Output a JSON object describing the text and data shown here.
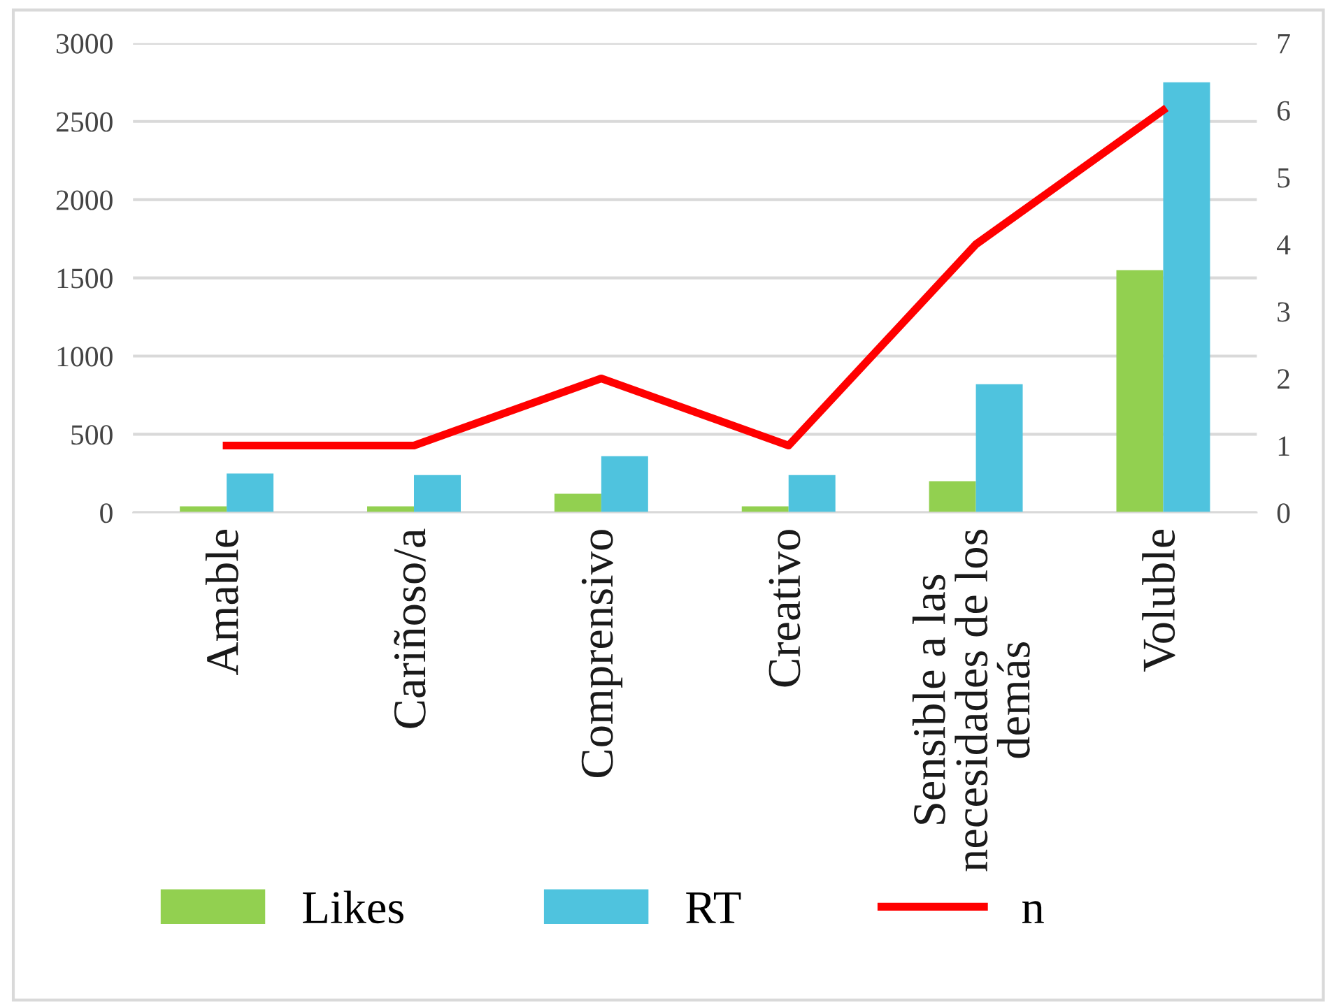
{
  "chart_data": {
    "type": "bar",
    "categories": [
      "Amable",
      "Cariñoso/a",
      "Comprensivo",
      "Creativo",
      "Sensible a las\nnecesidades de los\ndemás",
      "Voluble"
    ],
    "series": [
      {
        "name": "Likes",
        "color": "#92d050",
        "values": [
          40,
          40,
          120,
          40,
          200,
          1550
        ]
      },
      {
        "name": "RT",
        "color": "#4fc3de",
        "values": [
          250,
          240,
          360,
          240,
          820,
          2750
        ]
      },
      {
        "name": "n",
        "type": "line",
        "axis": "y2",
        "color": "#ff0000",
        "values": [
          1,
          1,
          2,
          1,
          4,
          6
        ]
      }
    ],
    "ylim": [
      0,
      3000
    ],
    "yticks": [
      0,
      500,
      1000,
      1500,
      2000,
      2500,
      3000
    ],
    "y2lim": [
      0,
      7
    ],
    "y2ticks": [
      0,
      1,
      2,
      3,
      4,
      5,
      6,
      7
    ],
    "grid": "y",
    "legend": "bottom left",
    "marker": "none",
    "line_style": "solid"
  }
}
